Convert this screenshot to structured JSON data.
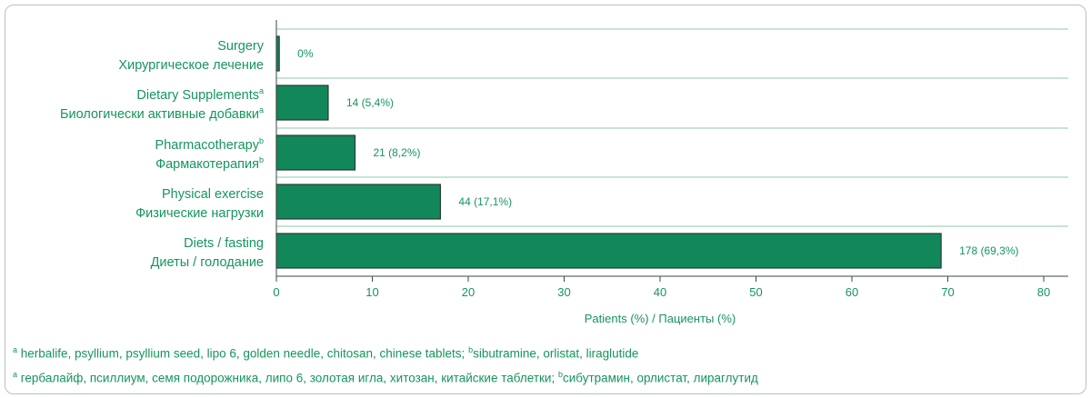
{
  "chart_data": {
    "type": "bar",
    "orientation": "horizontal",
    "categories": [
      {
        "en": "Surgery",
        "ru": "Хирургическое лечение",
        "en_sup": "",
        "ru_sup": ""
      },
      {
        "en": "Dietary Supplements",
        "ru": "Биологически активные добавки",
        "en_sup": "a",
        "ru_sup": "a"
      },
      {
        "en": "Pharmacotherapy",
        "ru": "Фармакотерапия",
        "en_sup": "b",
        "ru_sup": "b"
      },
      {
        "en": "Physical exercise",
        "ru": "Физические нагрузки",
        "en_sup": "",
        "ru_sup": ""
      },
      {
        "en": "Diets / fasting",
        "ru": "Диеты / голодание",
        "en_sup": "",
        "ru_sup": ""
      }
    ],
    "values": [
      0.3,
      5.4,
      8.2,
      17.1,
      69.3
    ],
    "value_labels": [
      "0%",
      "14 (5,4%)",
      "21 (8,2%)",
      "44 (17,1%)",
      "178 (69,3%)"
    ],
    "xlabel": "Patients (%) / Пациенты (%)",
    "xlim": [
      0,
      80
    ],
    "xticks": [
      "0",
      "10",
      "20",
      "30",
      "40",
      "50",
      "60",
      "70",
      "80"
    ],
    "grid": "horizontal separators",
    "colors": {
      "bar": "#12875a",
      "bar_border": "#2a3a34",
      "text": "#15955c",
      "grid": "#8fc9ab"
    }
  },
  "footnotes": {
    "en_a_mark": "a",
    "en_a_text": " herbalife, psyllium, psyllium seed, lipo 6, golden needle, chitosan, chinese tablets; ",
    "en_b_mark": "b",
    "en_b_text": "sibutramine, orlistat, liraglutide",
    "ru_a_mark": "a",
    "ru_a_text": " гербалайф, псиллиум, семя подорожника, липо 6, золотая игла, хитозан, китайские таблетки; ",
    "ru_b_mark": "b",
    "ru_b_text": "сибутрамин, орлистат, лираглутид"
  }
}
